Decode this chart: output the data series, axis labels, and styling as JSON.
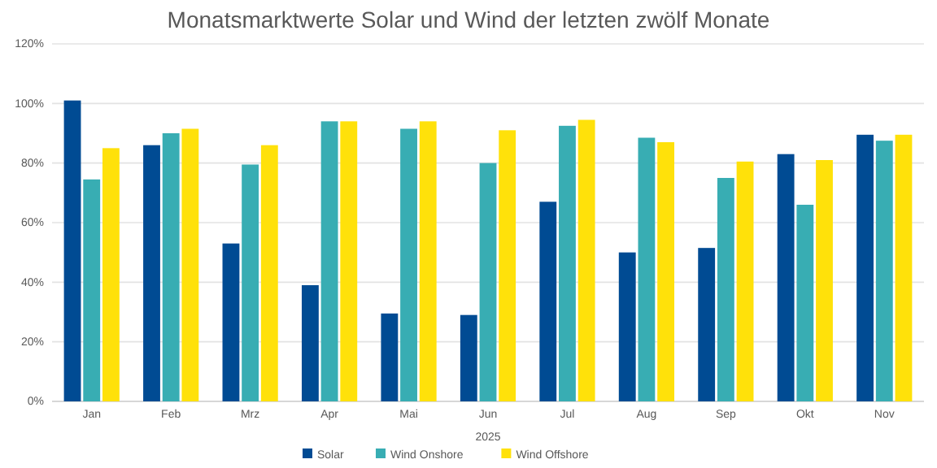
{
  "chart_data": {
    "type": "bar",
    "title": "Monatsmarktwerte Solar und Wind der letzten zwölf Monate",
    "xlabel": "2025",
    "categories": [
      "Jan",
      "Feb",
      "Mrz",
      "Apr",
      "Mai",
      "Jun",
      "Jul",
      "Aug",
      "Sep",
      "Okt",
      "Nov"
    ],
    "series": [
      {
        "name": "Solar",
        "color": "#004b93",
        "values": [
          101,
          86,
          53,
          39,
          29.5,
          29,
          67,
          50,
          51.5,
          83,
          89.5
        ]
      },
      {
        "name": "Wind Onshore",
        "color": "#38adb3",
        "values": [
          74.5,
          90,
          79.5,
          94,
          91.5,
          80,
          92.5,
          88.5,
          75,
          66,
          87.5
        ]
      },
      {
        "name": "Wind Offshore",
        "color": "#ffe10a",
        "values": [
          85,
          91.5,
          86,
          94,
          94,
          91,
          94.5,
          87,
          80.5,
          81,
          89.5
        ]
      }
    ],
    "ylim": [
      0,
      120
    ],
    "yticks": [
      {
        "value": 0,
        "label": "0%"
      },
      {
        "value": 20,
        "label": "20%"
      },
      {
        "value": 40,
        "label": "40%"
      },
      {
        "value": 60,
        "label": "60%"
      },
      {
        "value": 80,
        "label": "80%"
      },
      {
        "value": 100,
        "label": "100%"
      },
      {
        "value": 120,
        "label": "120%"
      }
    ],
    "grid": "y",
    "legend": "bottom"
  }
}
